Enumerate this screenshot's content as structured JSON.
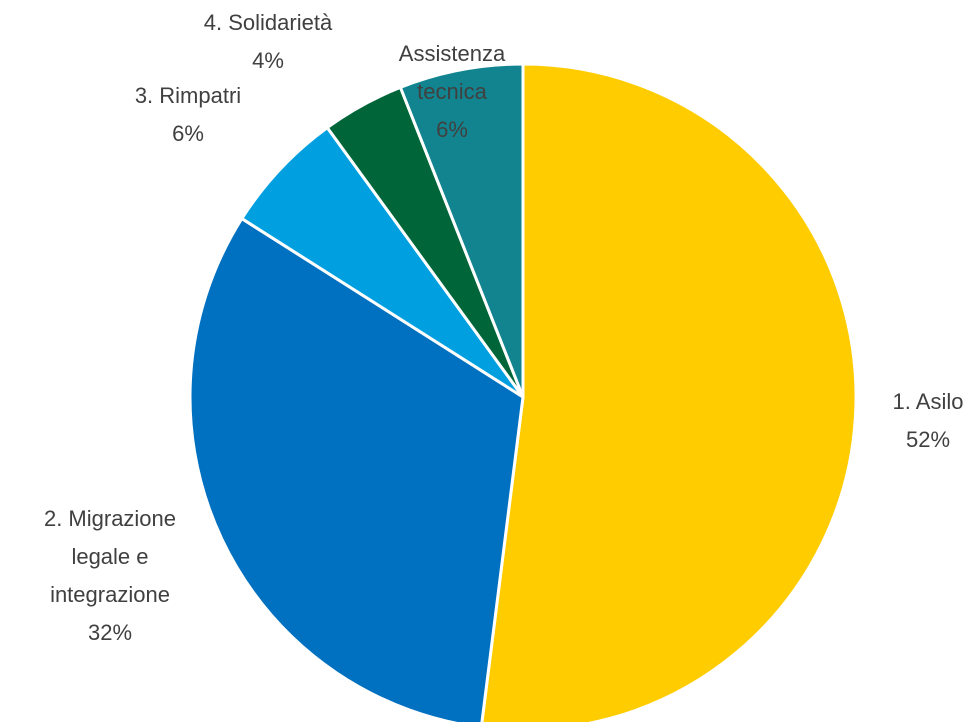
{
  "chart_data": {
    "type": "pie",
    "title": "",
    "start_angle": "12 o'clock, clockwise",
    "slices": [
      {
        "name": "1. Asilo",
        "label_lines": [
          "1. Asilo"
        ],
        "percent": 52,
        "percent_label": "52%",
        "color": "#FFCC00"
      },
      {
        "name": "2. Migrazione legale e integrazione",
        "label_lines": [
          "2. Migrazione",
          "legale e",
          "integrazione"
        ],
        "percent": 32,
        "percent_label": "32%",
        "color": "#0070C0"
      },
      {
        "name": "3. Rimpatri",
        "label_lines": [
          "3. Rimpatri"
        ],
        "percent": 6,
        "percent_label": "6%",
        "color": "#00A0E0"
      },
      {
        "name": "4. Solidarietà",
        "label_lines": [
          "4. Solidarietà"
        ],
        "percent": 4,
        "percent_label": "4%",
        "color": "#00663A"
      },
      {
        "name": "Assistenza tecnica",
        "label_lines": [
          "Assistenza",
          "tecnica"
        ],
        "percent": 6,
        "percent_label": "6%",
        "color": "#128490"
      }
    ],
    "legend": "none (data labels on chart)"
  }
}
